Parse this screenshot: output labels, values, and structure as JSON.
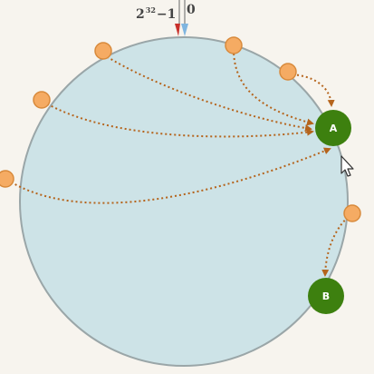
{
  "diagram": {
    "top_label_left_base": "2",
    "top_label_left_exponent": "32",
    "top_label_left_suffix": "−1",
    "top_label_right": "0",
    "nodes": [
      {
        "id": "A",
        "label": "A"
      },
      {
        "id": "B",
        "label": "B"
      }
    ],
    "colors": {
      "ring_fill": "#cde3e7",
      "ring_stroke": "#9aa6a8",
      "key_fill": "#f5ab63",
      "key_stroke": "#d88a3c",
      "node_fill": "#3d800f",
      "arrow": "#b5641c",
      "marker_red": "#c8302a",
      "marker_blue": "#7fb5e0"
    }
  }
}
